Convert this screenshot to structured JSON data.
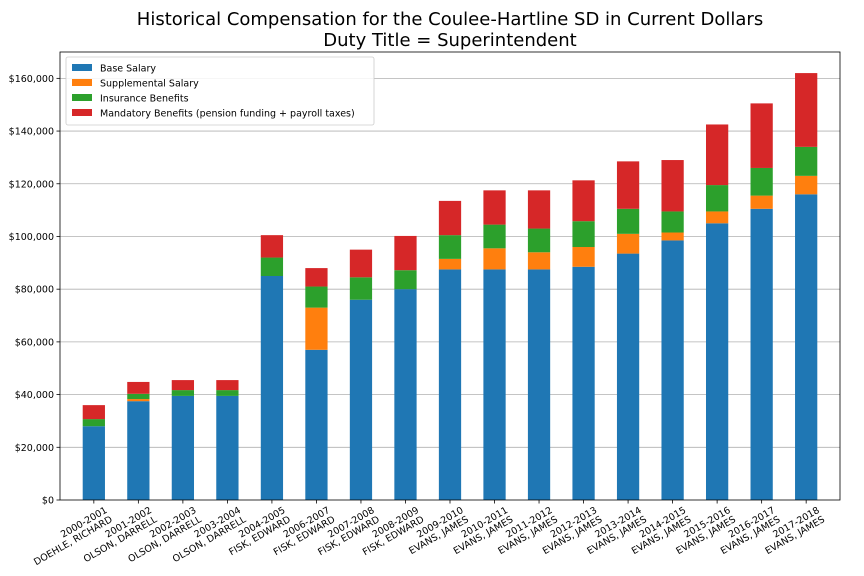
{
  "chart_data": {
    "type": "bar",
    "stacked": true,
    "title": "Historical Compensation for the Coulee-Hartline SD in Current Dollars",
    "subtitle": "Duty Title = Superintendent",
    "xlabel": "",
    "ylabel": "",
    "ylim": [
      0,
      170000
    ],
    "yticks": [
      0,
      20000,
      40000,
      60000,
      80000,
      100000,
      120000,
      140000,
      160000
    ],
    "ytick_labels": [
      "$0",
      "$20,000",
      "$40,000",
      "$60,000",
      "$80,000",
      "$100,000",
      "$120,000",
      "$140,000",
      "$160,000"
    ],
    "grid": "horizontal",
    "legend_position": "top-left",
    "categories": [
      [
        "2000-2001",
        "DOEHLE, RICHARD"
      ],
      [
        "2001-2002",
        "OLSON, DARRELL"
      ],
      [
        "2002-2003",
        "OLSON, DARRELL"
      ],
      [
        "2003-2004",
        "OLSON, DARRELL"
      ],
      [
        "2004-2005",
        "FISK, EDWARD"
      ],
      [
        "2006-2007",
        "FISK, EDWARD"
      ],
      [
        "2007-2008",
        "FISK, EDWARD"
      ],
      [
        "2008-2009",
        "FISK, EDWARD"
      ],
      [
        "2009-2010",
        "EVANS, JAMES"
      ],
      [
        "2010-2011",
        "EVANS, JAMES"
      ],
      [
        "2011-2012",
        "EVANS, JAMES"
      ],
      [
        "2012-2013",
        "EVANS, JAMES"
      ],
      [
        "2013-2014",
        "EVANS, JAMES"
      ],
      [
        "2014-2015",
        "EVANS, JAMES"
      ],
      [
        "2015-2016",
        "EVANS, JAMES"
      ],
      [
        "2016-2017",
        "EVANS, JAMES"
      ],
      [
        "2017-2018",
        "EVANS, JAMES"
      ]
    ],
    "series": [
      {
        "name": "Base Salary",
        "color": "#1f77b4",
        "values": [
          28000,
          37500,
          39500,
          39500,
          85000,
          57000,
          76000,
          80000,
          87500,
          87500,
          87500,
          88500,
          93500,
          98500,
          105000,
          110500,
          116000
        ]
      },
      {
        "name": "Supplemental Salary",
        "color": "#ff7f0e",
        "values": [
          0,
          800,
          0,
          0,
          0,
          16000,
          0,
          0,
          4000,
          8000,
          6500,
          7500,
          7500,
          3000,
          4500,
          5000,
          7000
        ]
      },
      {
        "name": "Insurance Benefits",
        "color": "#2ca02c",
        "values": [
          2700,
          2000,
          2200,
          2200,
          7000,
          8000,
          8500,
          7200,
          9000,
          9000,
          9000,
          9800,
          9500,
          8000,
          10000,
          10500,
          11000
        ]
      },
      {
        "name": "Mandatory Benefits (pension funding + payroll taxes)",
        "color": "#d62728",
        "values": [
          5300,
          4500,
          3800,
          3800,
          8500,
          7000,
          10500,
          13000,
          13000,
          13000,
          14500,
          15500,
          18000,
          19500,
          23000,
          24500,
          28000
        ]
      }
    ]
  }
}
